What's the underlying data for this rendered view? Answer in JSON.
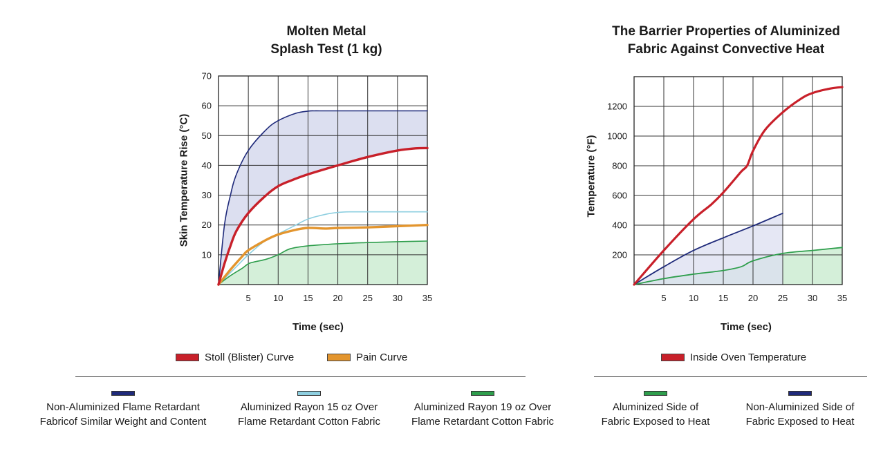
{
  "colors": {
    "navy": "#1f2a7a",
    "navy_fill": "#dcdff0",
    "red": "#c8202a",
    "orange": "#e3952e",
    "light_blue": "#8ecfe0",
    "green": "#2e9e4c",
    "green_fill": "#d4efd9",
    "overlap_fill": "#9fc6bd",
    "grid": "#333333"
  },
  "chart_data": [
    {
      "type": "line",
      "title": [
        "Molten Metal",
        "Splash Test (1 kg)"
      ],
      "xlabel": "Time (sec)",
      "ylabel": "Skin Temperature Rise (°C)",
      "xlim": [
        0,
        35
      ],
      "ylim": [
        0,
        70
      ],
      "x_ticks": [
        5,
        10,
        15,
        20,
        25,
        30,
        35
      ],
      "y_ticks": [
        10,
        20,
        30,
        40,
        50,
        60,
        70
      ],
      "grid": true,
      "series": [
        {
          "name": "Non-Aluminized Flame Retardant Fabricof Similar Weight and Content",
          "color": "navy",
          "fill": "navy_fill",
          "x": [
            0,
            1,
            2,
            3,
            5,
            8,
            10,
            13,
            15,
            16,
            17,
            20,
            25,
            30,
            35
          ],
          "y": [
            0,
            20,
            30,
            37,
            45,
            52,
            55,
            57.5,
            58.2,
            58.3,
            58.3,
            58.3,
            58.3,
            58.3,
            58.3
          ]
        },
        {
          "name": "Aluminized Rayon 15 oz Over Flame Retardant Cotton Fabric",
          "color": "light_blue",
          "x": [
            0,
            3,
            5,
            8,
            10,
            13,
            15,
            18,
            20,
            22,
            25,
            30,
            35
          ],
          "y": [
            0,
            6,
            10,
            15,
            17,
            20,
            22,
            23.6,
            24.2,
            24.4,
            24.4,
            24.4,
            24.4
          ]
        },
        {
          "name": "Aluminized Rayon 19 oz Over Flame Retardant Cotton Fabric",
          "color": "green",
          "fill": "green_fill",
          "x": [
            0,
            2,
            4,
            5,
            6,
            8,
            10,
            12,
            15,
            20,
            25,
            30,
            35
          ],
          "y": [
            0,
            3,
            5.5,
            7,
            7.6,
            8.5,
            10,
            12,
            13,
            13.7,
            14.1,
            14.4,
            14.6
          ]
        },
        {
          "name": "Stoll (Blister) Curve",
          "color": "red",
          "x": [
            0,
            1,
            2,
            3,
            5,
            8,
            10,
            12,
            15,
            20,
            25,
            30,
            33,
            35
          ],
          "y": [
            0,
            7,
            13,
            18,
            24,
            30,
            33,
            34.8,
            37,
            40,
            42.8,
            45,
            45.7,
            45.8
          ]
        },
        {
          "name": "Pain Curve",
          "color": "orange",
          "x": [
            0,
            2,
            4,
            5,
            8,
            10,
            13,
            15,
            18,
            20,
            25,
            30,
            35
          ],
          "y": [
            0,
            5,
            9.5,
            11.5,
            15,
            16.8,
            18.4,
            19,
            18.8,
            19,
            19.2,
            19.6,
            20
          ]
        }
      ]
    },
    {
      "type": "line",
      "title": [
        "The Barrier Properties of Aluminized",
        "Fabric Against Convective Heat"
      ],
      "xlabel": "Time (sec)",
      "ylabel": "Temperature (°F)",
      "xlim": [
        0,
        35
      ],
      "ylim": [
        0,
        1400
      ],
      "x_ticks": [
        5,
        10,
        15,
        20,
        25,
        30,
        35
      ],
      "y_ticks": [
        200,
        400,
        600,
        800,
        1000,
        1200
      ],
      "grid": true,
      "series": [
        {
          "name": "Inside Oven Temperature",
          "color": "red",
          "x": [
            0,
            5,
            10,
            13,
            15,
            18,
            19,
            20,
            22,
            25,
            28,
            30,
            33,
            35
          ],
          "y": [
            0,
            230,
            440,
            540,
            620,
            760,
            800,
            900,
            1040,
            1160,
            1250,
            1290,
            1320,
            1330
          ]
        },
        {
          "name": "Non-Aluminized Side of Fabric Exposed to Heat",
          "color": "navy",
          "fill": "navy_fill",
          "x": [
            0,
            5,
            10,
            15,
            20,
            25
          ],
          "y": [
            0,
            120,
            230,
            315,
            395,
            480
          ]
        },
        {
          "name": "Aluminized Side of Fabric Exposed to Heat",
          "color": "green",
          "fill": "green_fill",
          "x": [
            0,
            5,
            10,
            15,
            18,
            20,
            25,
            30,
            35
          ],
          "y": [
            0,
            40,
            70,
            95,
            120,
            160,
            210,
            230,
            250
          ]
        }
      ]
    }
  ],
  "legend_left_top": [
    {
      "label": "Stoll (Blister) Curve",
      "color": "red"
    },
    {
      "label": "Pain Curve",
      "color": "orange"
    }
  ],
  "legend_right_top": [
    {
      "label": "Inside Oven Temperature",
      "color": "red"
    }
  ],
  "legend_left_bottom": [
    {
      "line1": "Non-Aluminized Flame Retardant",
      "line2": "Fabricof Similar Weight and Content",
      "color": "navy"
    },
    {
      "line1": "Aluminized Rayon 15 oz Over",
      "line2": "Flame Retardant Cotton Fabric",
      "color": "light_blue"
    },
    {
      "line1": "Aluminized Rayon 19 oz Over",
      "line2": "Flame Retardant Cotton Fabric",
      "color": "green"
    }
  ],
  "legend_right_bottom": [
    {
      "line1": "Aluminized Side of",
      "line2": "Fabric Exposed to Heat",
      "color": "green"
    },
    {
      "line1": "Non-Aluminized Side of",
      "line2": "Fabric Exposed to Heat",
      "color": "navy"
    }
  ]
}
